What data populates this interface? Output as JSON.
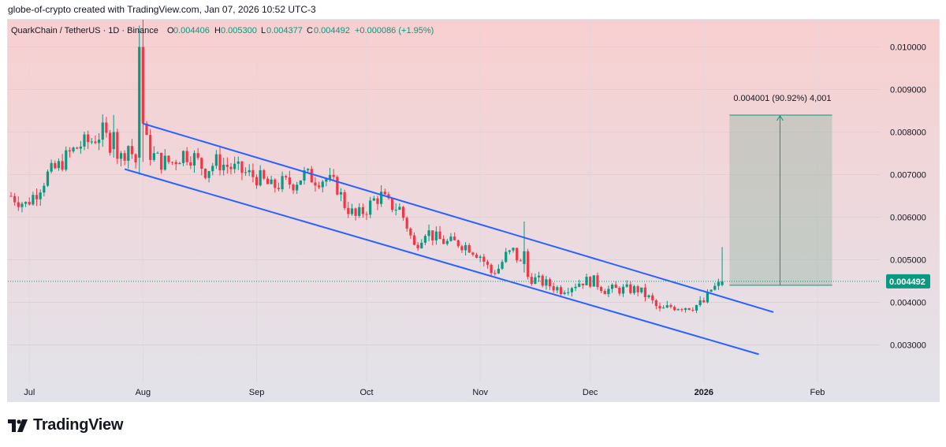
{
  "caption": "globe-of-crypto created with TradingView.com, Jan 07, 2026 10:52 UTC-3",
  "header": {
    "symbol": "QuarkChain / TetherUS · 1D · Binance",
    "o_label": "O",
    "o_value": "0.004406",
    "h_label": "H",
    "h_value": "0.005300",
    "l_label": "L",
    "l_value": "0.004377",
    "c_label": "C",
    "c_value": "0.004492",
    "change": "+0.000086 (+1.95%)"
  },
  "brand": {
    "name": "TradingView",
    "logo_icon": "tradingview-logo-icon"
  },
  "colors": {
    "up": "#089981",
    "down": "#f23645",
    "channel": "#2962ff",
    "measure_fill": "#9bb7a8",
    "measure_line": "#089981",
    "bg_top": "#f8cfd0",
    "bg_bottom": "#e2e3ea"
  },
  "chart_data": {
    "type": "candlestick",
    "title": "QuarkChain / TetherUS · 1D · Binance",
    "x_labels": [
      {
        "label": "Jul",
        "day": 5
      },
      {
        "label": "Aug",
        "day": 36
      },
      {
        "label": "Sep",
        "day": 67
      },
      {
        "label": "Oct",
        "day": 97
      },
      {
        "label": "Nov",
        "day": 128
      },
      {
        "label": "Dec",
        "day": 158
      },
      {
        "label": "2026",
        "day": 189
      },
      {
        "label": "Feb",
        "day": 220
      }
    ],
    "y_ticks": [
      "0.003000",
      "0.004000",
      "0.005000",
      "0.006000",
      "0.007000",
      "0.008000",
      "0.009000",
      "0.010000"
    ],
    "ylim": [
      0.00212,
      0.01064
    ],
    "xlim": [
      0,
      237
    ],
    "last_price": "0.004492",
    "last_price_value": 0.004492,
    "price_path": [
      [
        0,
        0.0065
      ],
      [
        4,
        0.0063
      ],
      [
        7,
        0.0066
      ],
      [
        10,
        0.007
      ],
      [
        13,
        0.0072
      ],
      [
        16,
        0.0075
      ],
      [
        19,
        0.0077
      ],
      [
        22,
        0.0078
      ],
      [
        25,
        0.008
      ],
      [
        28,
        0.0076
      ],
      [
        30,
        0.0074
      ],
      [
        32,
        0.0077
      ],
      [
        34,
        0.0073
      ],
      [
        35,
        0.0085
      ],
      [
        36,
        0.008
      ],
      [
        38,
        0.0075
      ],
      [
        41,
        0.0073
      ],
      [
        44,
        0.0073
      ],
      [
        47,
        0.0075
      ],
      [
        50,
        0.0074
      ],
      [
        53,
        0.0071
      ],
      [
        56,
        0.0073
      ],
      [
        59,
        0.0072
      ],
      [
        62,
        0.0071
      ],
      [
        65,
        0.007
      ],
      [
        68,
        0.0069
      ],
      [
        71,
        0.0067
      ],
      [
        74,
        0.0068
      ],
      [
        77,
        0.0068
      ],
      [
        80,
        0.007
      ],
      [
        83,
        0.0069
      ],
      [
        86,
        0.0069
      ],
      [
        89,
        0.0067
      ],
      [
        91,
        0.0063
      ],
      [
        94,
        0.006
      ],
      [
        97,
        0.0062
      ],
      [
        99,
        0.0064
      ],
      [
        101,
        0.0065
      ],
      [
        103,
        0.0063
      ],
      [
        106,
        0.0062
      ],
      [
        108,
        0.0058
      ],
      [
        110,
        0.0053
      ],
      [
        113,
        0.0057
      ],
      [
        116,
        0.0055
      ],
      [
        119,
        0.0054
      ],
      [
        122,
        0.0054
      ],
      [
        125,
        0.0053
      ],
      [
        128,
        0.0051
      ],
      [
        131,
        0.0047
      ],
      [
        133,
        0.0048
      ],
      [
        135,
        0.0051
      ],
      [
        137,
        0.0052
      ],
      [
        139,
        0.0049
      ],
      [
        141,
        0.0046
      ],
      [
        144,
        0.0045
      ],
      [
        147,
        0.0044
      ],
      [
        150,
        0.0043
      ],
      [
        153,
        0.0044
      ],
      [
        156,
        0.0045
      ],
      [
        159,
        0.0045
      ],
      [
        162,
        0.0043
      ],
      [
        165,
        0.0043
      ],
      [
        168,
        0.0043
      ],
      [
        171,
        0.0043
      ],
      [
        174,
        0.0041
      ],
      [
        177,
        0.0038
      ],
      [
        180,
        0.0039
      ],
      [
        183,
        0.0039
      ],
      [
        186,
        0.0039
      ],
      [
        189,
        0.004
      ],
      [
        191,
        0.0043
      ],
      [
        193,
        0.0044
      ],
      [
        194,
        0.004492
      ]
    ],
    "spikes": [
      {
        "day": 35,
        "high": 0.0105,
        "low": 0.007,
        "body_open": 0.0074,
        "body_close": 0.01,
        "up": true
      },
      {
        "day": 36,
        "high": 0.0108,
        "low": 0.0073,
        "body_open": 0.01,
        "body_close": 0.0082,
        "up": false
      },
      {
        "day": 28,
        "high": 0.0084,
        "low": 0.0074,
        "body_open": 0.0076,
        "body_close": 0.008,
        "up": true
      },
      {
        "day": 140,
        "high": 0.0059,
        "low": 0.0047,
        "body_open": 0.0049,
        "body_close": 0.0052,
        "up": true
      },
      {
        "day": 194,
        "high": 0.0053,
        "low": 0.004377,
        "body_open": 0.004406,
        "body_close": 0.004492,
        "up": true
      }
    ],
    "channel_upper": {
      "start": [
        36,
        0.0082
      ],
      "end": [
        208,
        0.00377
      ]
    },
    "channel_lower": {
      "start": [
        31,
        0.00713
      ],
      "end": [
        204,
        0.00278
      ]
    },
    "measure": {
      "label": "0.004001 (90.92%) 4,001",
      "x_start": 196,
      "x_end": 224,
      "y_low": 0.0044,
      "y_high": 0.0084
    }
  }
}
